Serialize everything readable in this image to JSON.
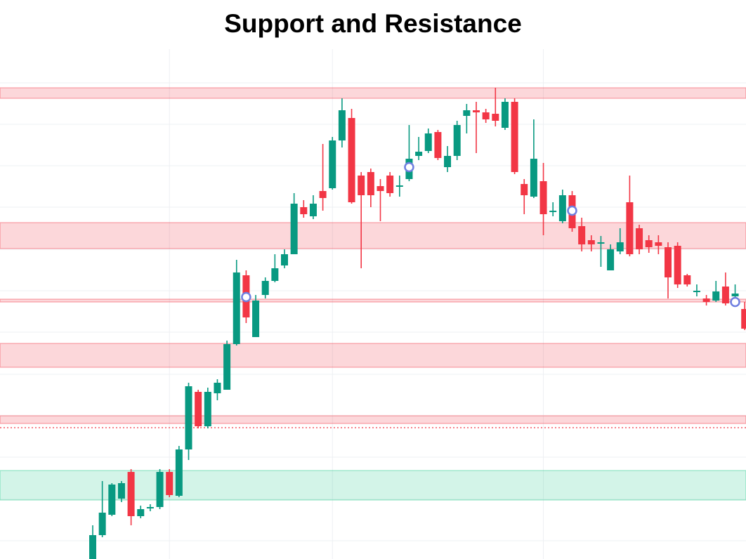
{
  "chart_data": {
    "type": "candlestick",
    "title": "Support and Resistance",
    "ylim": [
      0,
      726
    ],
    "up_color": "#089981",
    "down_color": "#f23645",
    "grid": true,
    "ygrid": [
      678,
      619,
      560,
      501,
      441,
      382,
      323,
      263,
      204,
      145,
      85,
      26
    ],
    "xgrid": [
      8,
      25,
      47
    ],
    "open": [
      0,
      34,
      63,
      86,
      124,
      61,
      74,
      74,
      124,
      90,
      156,
      238,
      189,
      236,
      241,
      306,
      404,
      316,
      376,
      396,
      418,
      434,
      501,
      488,
      524,
      528,
      596,
      628,
      546,
      551,
      531,
      546,
      530,
      541,
      574,
      581,
      608,
      558,
      574,
      631,
      639,
      636,
      634,
      614,
      651,
      534,
      516,
      538,
      496,
      481,
      518,
      474,
      454,
      451,
      411,
      438,
      508,
      471,
      454,
      451,
      444,
      446,
      404,
      382,
      371,
      368,
      388,
      374,
      356
    ],
    "high": [
      48,
      111,
      108,
      111,
      128,
      76,
      78,
      128,
      128,
      161,
      251,
      241,
      244,
      256,
      311,
      426,
      411,
      376,
      401,
      434,
      441,
      521,
      511,
      518,
      591,
      601,
      656,
      641,
      551,
      556,
      541,
      551,
      546,
      618,
      601,
      613,
      611,
      588,
      624,
      648,
      651,
      641,
      671,
      656,
      656,
      541,
      626,
      564,
      508,
      526,
      524,
      486,
      461,
      460,
      448,
      471,
      546,
      476,
      461,
      461,
      451,
      451,
      406,
      391,
      376,
      396,
      408,
      391,
      366
    ],
    "low": [
      0,
      31,
      61,
      81,
      48,
      58,
      68,
      71,
      88,
      88,
      141,
      186,
      186,
      226,
      241,
      304,
      336,
      316,
      371,
      394,
      414,
      434,
      486,
      484,
      496,
      526,
      586,
      506,
      414,
      501,
      481,
      516,
      516,
      538,
      568,
      578,
      568,
      551,
      568,
      606,
      578,
      621,
      616,
      611,
      548,
      491,
      514,
      461,
      488,
      478,
      466,
      438,
      438,
      416,
      411,
      434,
      431,
      434,
      436,
      434,
      371,
      386,
      388,
      374,
      361,
      366,
      361,
      371,
      326
    ],
    "close": [
      34,
      66,
      106,
      108,
      61,
      71,
      74,
      124,
      91,
      156,
      246,
      189,
      238,
      251,
      306,
      408,
      344,
      368,
      396,
      414,
      434,
      506,
      491,
      506,
      514,
      596,
      639,
      508,
      518,
      518,
      524,
      521,
      532,
      570,
      580,
      606,
      571,
      574,
      618,
      639,
      636,
      626,
      624,
      651,
      551,
      518,
      570,
      491,
      496,
      518,
      471,
      448,
      448,
      451,
      441,
      451,
      434,
      441,
      444,
      446,
      401,
      391,
      391,
      382,
      366,
      381,
      364,
      378,
      328
    ],
    "zones": [
      {
        "low": 656,
        "high": 671,
        "color": "#f23645"
      },
      {
        "low": 442,
        "high": 479,
        "color": "#f23645"
      },
      {
        "low": 366,
        "high": 370,
        "color": "#f23645"
      },
      {
        "low": 273,
        "high": 307,
        "color": "#f23645"
      },
      {
        "low": 193,
        "high": 204,
        "color": "#f23645"
      },
      {
        "low": 84,
        "high": 126,
        "color": "#22c98a"
      }
    ],
    "dotted_line": {
      "value": 187,
      "color": "#f23645"
    },
    "markers": [
      {
        "index": 16,
        "value": 373
      },
      {
        "index": 33,
        "value": 558
      },
      {
        "index": 50,
        "value": 496
      },
      {
        "index": 67,
        "value": 366
      }
    ],
    "marker_color": "#6f7fe0"
  }
}
